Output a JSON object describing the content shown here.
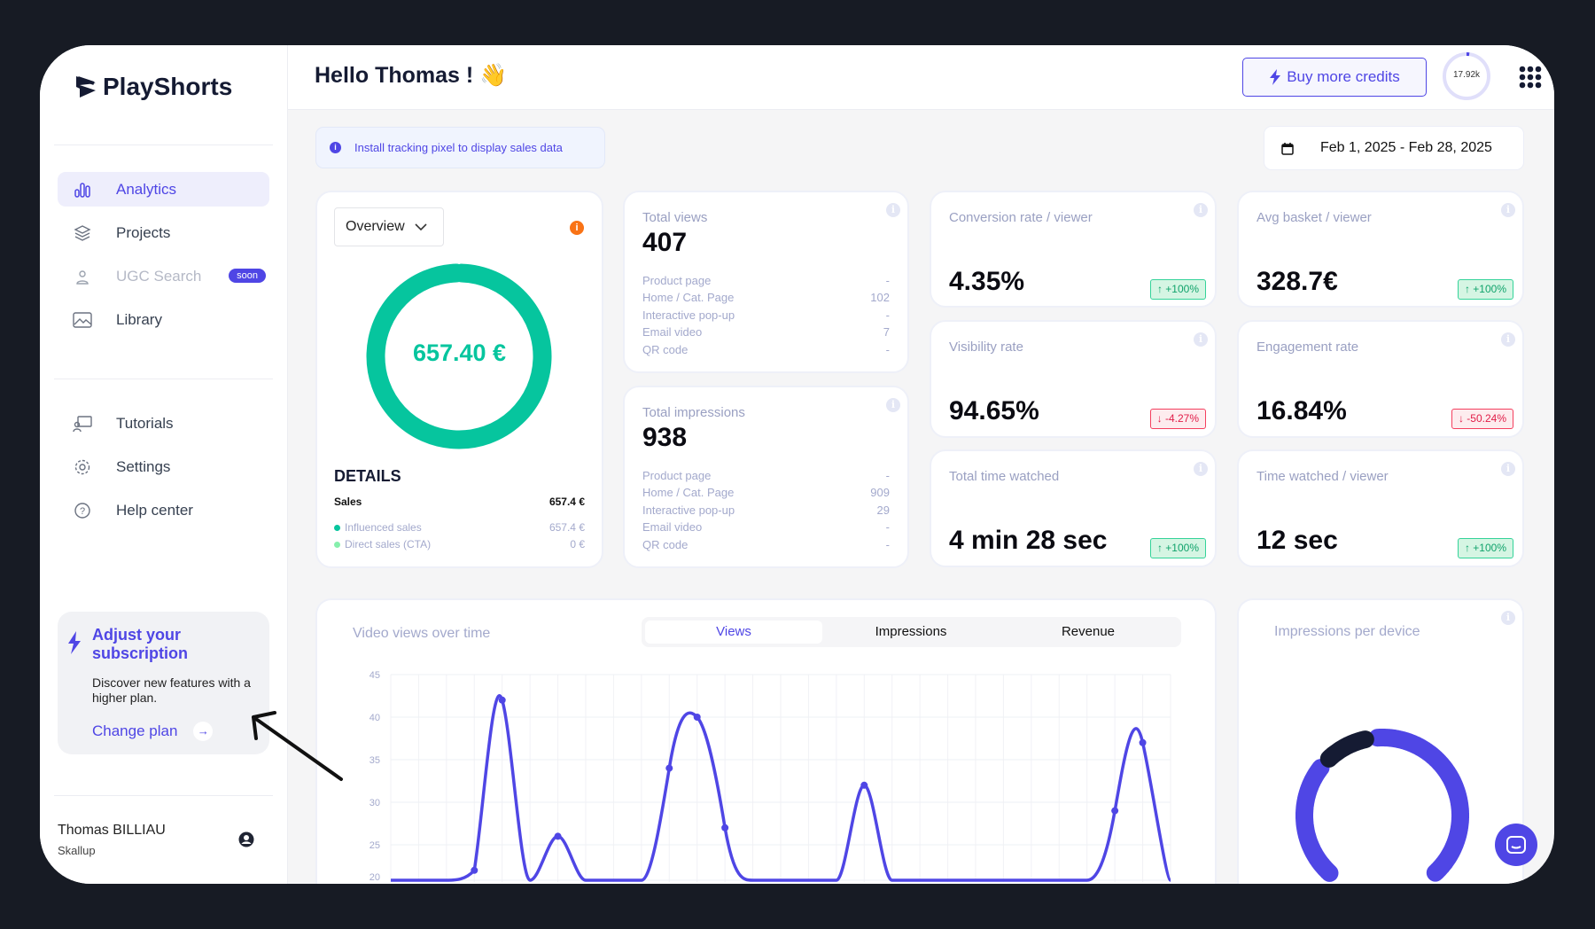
{
  "brand": {
    "name": "PlayShorts"
  },
  "sidebar": {
    "items": [
      {
        "label": "Analytics",
        "icon": "bar-chart-icon"
      },
      {
        "label": "Projects",
        "icon": "layers-icon"
      },
      {
        "label": "UGC Search",
        "icon": "user-search-icon",
        "badge": "soon"
      },
      {
        "label": "Library",
        "icon": "image-icon"
      },
      {
        "label": "Tutorials",
        "icon": "presentation-icon"
      },
      {
        "label": "Settings",
        "icon": "gear-icon"
      },
      {
        "label": "Help center",
        "icon": "help-circle-icon"
      }
    ],
    "promo": {
      "title": "Adjust your subscription",
      "text": "Discover new features with a higher plan.",
      "link": "Change plan"
    },
    "user": {
      "name": "Thomas BILLIAU",
      "company": "Skallup"
    }
  },
  "header": {
    "greeting": "Hello Thomas ! 👋",
    "buy_credits": "Buy more credits",
    "credits": "17.92k",
    "credits_fraction": 0.01
  },
  "banner": {
    "text": "Install tracking pixel to display sales data"
  },
  "date_range": "Feb 1, 2025 - Feb 28, 2025",
  "overview": {
    "select": "Overview",
    "total": "657.40 €",
    "details_title": "DETAILS",
    "sales_label": "Sales",
    "sales_value": "657.4 €",
    "rows": [
      {
        "label": "Influenced sales",
        "value": "657.4 €",
        "color": "#06C59E"
      },
      {
        "label": "Direct sales (CTA)",
        "value": "0 €",
        "color": "#86EFAC"
      }
    ]
  },
  "views": {
    "label": "Total views",
    "value": "407",
    "rows": [
      {
        "label": "Product page",
        "value": "-"
      },
      {
        "label": "Home / Cat. Page",
        "value": "102"
      },
      {
        "label": "Interactive pop-up",
        "value": "-"
      },
      {
        "label": "Email video",
        "value": "7"
      },
      {
        "label": "QR code",
        "value": "-"
      }
    ]
  },
  "impressions": {
    "label": "Total impressions",
    "value": "938",
    "rows": [
      {
        "label": "Product page",
        "value": "-"
      },
      {
        "label": "Home / Cat. Page",
        "value": "909"
      },
      {
        "label": "Interactive pop-up",
        "value": "29"
      },
      {
        "label": "Email video",
        "value": "-"
      },
      {
        "label": "QR code",
        "value": "-"
      }
    ]
  },
  "metrics": [
    {
      "label": "Conversion rate / viewer",
      "value": "4.35%",
      "delta": "+100%",
      "dir": "up"
    },
    {
      "label": "Avg basket / viewer",
      "value": "328.7€",
      "delta": "+100%",
      "dir": "up"
    },
    {
      "label": "Visibility rate",
      "value": "94.65%",
      "delta": "-4.27%",
      "dir": "down"
    },
    {
      "label": "Engagement rate",
      "value": "16.84%",
      "delta": "-50.24%",
      "dir": "down"
    },
    {
      "label": "Total time watched",
      "value": "4 min 28 sec",
      "delta": "+100%",
      "dir": "up"
    },
    {
      "label": "Time watched / viewer",
      "value": "12 sec",
      "delta": "+100%",
      "dir": "up"
    }
  ],
  "chart": {
    "title": "Video views over time",
    "tabs": [
      "Views",
      "Impressions",
      "Revenue"
    ],
    "active_tab": "Views"
  },
  "device": {
    "title": "Impressions per device"
  },
  "chart_data": [
    {
      "type": "line",
      "title": "Video views over time",
      "x": [
        0,
        1,
        2,
        3,
        4,
        5,
        6,
        7,
        8,
        9,
        10,
        11,
        12,
        13,
        14,
        15,
        16,
        17,
        18,
        19,
        20,
        21,
        22,
        23,
        24,
        25,
        26,
        27,
        28
      ],
      "values": [
        0,
        0,
        0,
        22,
        42,
        0,
        26,
        0,
        0,
        0,
        34,
        40,
        27,
        0,
        0,
        0,
        0,
        32,
        0,
        0,
        0,
        0,
        0,
        0,
        0,
        0,
        29,
        37,
        0
      ],
      "yticks": [
        45,
        40,
        35,
        30,
        25,
        20
      ],
      "ylim": [
        0,
        45
      ],
      "grid": true,
      "color": "#4F46E5"
    },
    {
      "type": "pie",
      "title": "Impressions per device",
      "values": [
        0.89,
        0.11
      ],
      "colors": [
        "#4F46E5",
        "#151B33"
      ]
    }
  ]
}
